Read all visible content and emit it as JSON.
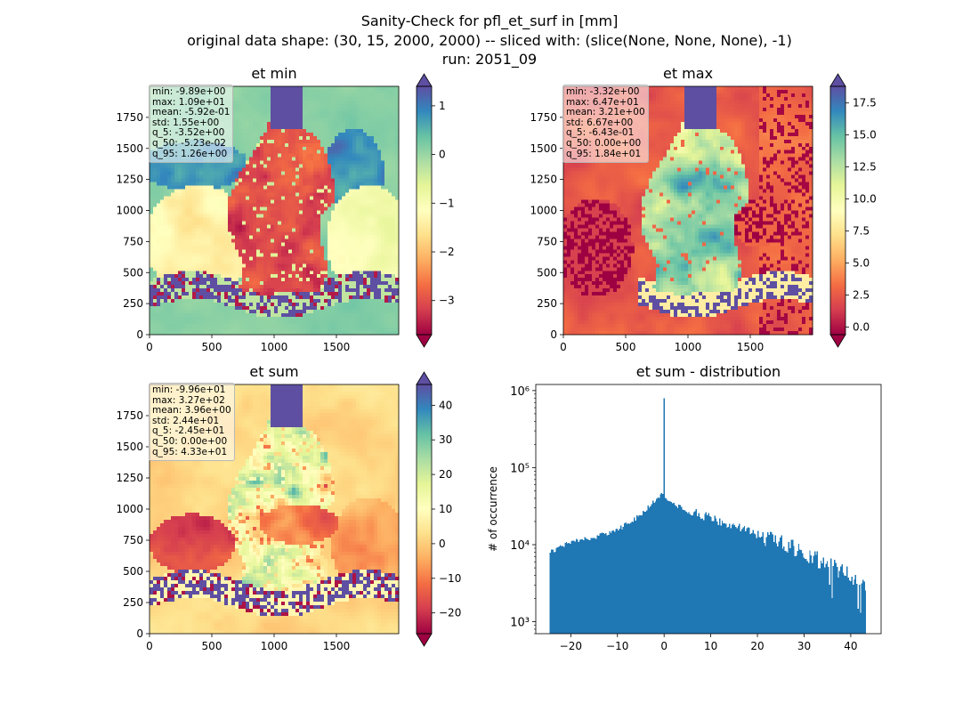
{
  "figure": {
    "title_lines": [
      "Sanity-Check for pfl_et_surf in [mm]",
      "original data shape: (30, 15, 2000, 2000) -- sliced with: (slice(None, None, None), -1)",
      "run: 2051_09"
    ]
  },
  "chart_data": [
    {
      "type": "heatmap",
      "title": "et min",
      "x_ticks": [
        0,
        500,
        1000,
        1500
      ],
      "y_ticks": [
        0,
        250,
        500,
        750,
        1000,
        1250,
        1500,
        1750
      ],
      "xlim": [
        0,
        2000
      ],
      "ylim": [
        0,
        2000
      ],
      "colormap": "Spectral",
      "colorbar": {
        "range": [
          -3.7,
          1.4
        ],
        "ticks": [
          -3,
          -2,
          -1,
          0,
          1
        ],
        "tick_labels": [
          "−3",
          "−2",
          "−1",
          "0",
          "1"
        ],
        "extend": "both"
      },
      "stats": [
        "min: -9.89e+00",
        "max: 1.09e+01",
        "mean: -5.92e-01",
        "std: 1.55e+00",
        "q_5: -3.52e+00",
        "q_50: -5.23e-02",
        "q_95: 1.26e+00"
      ]
    },
    {
      "type": "heatmap",
      "title": "et max",
      "x_ticks": [
        0,
        500,
        1000,
        1500
      ],
      "y_ticks": [
        0,
        250,
        500,
        750,
        1000,
        1250,
        1500,
        1750
      ],
      "xlim": [
        0,
        2000
      ],
      "ylim": [
        0,
        2000
      ],
      "colormap": "Spectral",
      "colorbar": {
        "range": [
          -0.6,
          18.8
        ],
        "ticks": [
          0,
          2.5,
          5,
          7.5,
          10,
          12.5,
          15,
          17.5
        ],
        "tick_labels": [
          "0.0",
          "2.5",
          "5.0",
          "7.5",
          "10.0",
          "12.5",
          "15.0",
          "17.5"
        ],
        "extend": "both"
      },
      "stats": [
        "min: -3.32e+00",
        "max: 6.47e+01",
        "mean: 3.21e+00",
        "std: 6.67e+00",
        "q_5: -6.43e-01",
        "q_50: 0.00e+00",
        "q_95: 1.84e+01"
      ]
    },
    {
      "type": "heatmap",
      "title": "et sum",
      "x_ticks": [
        0,
        500,
        1000,
        1500
      ],
      "y_ticks": [
        0,
        250,
        500,
        750,
        1000,
        1250,
        1500,
        1750
      ],
      "xlim": [
        0,
        2000
      ],
      "ylim": [
        0,
        2000
      ],
      "colormap": "Spectral",
      "colorbar": {
        "range": [
          -26,
          46
        ],
        "ticks": [
          -20,
          -10,
          0,
          10,
          20,
          30,
          40
        ],
        "tick_labels": [
          "−20",
          "−10",
          "0",
          "10",
          "20",
          "30",
          "40"
        ],
        "extend": "both"
      },
      "stats": [
        "min: -9.96e+01",
        "max: 3.27e+02",
        "mean: 3.96e+00",
        "std: 2.44e+01",
        "q_5: -2.45e+01",
        "q_50: 0.00e+00",
        "q_95: 4.33e+01"
      ]
    },
    {
      "type": "bar",
      "title": "et sum - distribution",
      "ylabel": "# of occurrence",
      "xlabel": "",
      "yscale": "log",
      "xlim": [
        -27.5,
        46.5
      ],
      "ylim": [
        700,
        1200000
      ],
      "x_ticks": [
        -20,
        -10,
        0,
        10,
        20,
        30,
        40
      ],
      "x_tick_labels": [
        "−20",
        "−10",
        "0",
        "10",
        "20",
        "30",
        "40"
      ],
      "y_ticks": [
        1000,
        10000,
        100000,
        1000000
      ],
      "y_tick_labels": [
        "10³",
        "10⁴",
        "10⁵",
        "10⁶"
      ],
      "bins": {
        "start": -24.5,
        "end": 43.3,
        "count": 256
      },
      "profile": {
        "x": [
          -24.5,
          -20,
          -15,
          -10,
          -6,
          -3,
          -1.5,
          -0.5,
          0,
          0.5,
          2,
          5,
          10,
          15,
          20,
          25,
          30,
          35,
          40,
          43.3
        ],
        "y": [
          8000,
          10800,
          12500,
          15500,
          22000,
          32000,
          40000,
          45000,
          45000,
          40000,
          34000,
          28000,
          22000,
          17500,
          13500,
          10500,
          7800,
          5600,
          3800,
          3000
        ]
      },
      "peak": {
        "x": 0,
        "y": 800000
      },
      "color": "#1f77b4"
    }
  ]
}
